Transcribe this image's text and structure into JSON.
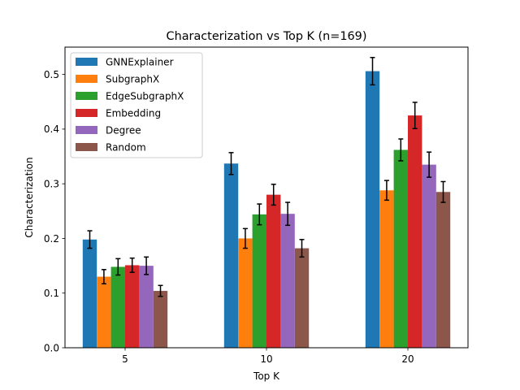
{
  "chart_data": {
    "type": "bar",
    "title": "Characterization vs Top K (n=169)",
    "xlabel": "Top K",
    "ylabel": "Characterization",
    "categories": [
      "5",
      "10",
      "20"
    ],
    "ylim": [
      0,
      0.55
    ],
    "yticks": [
      "0.0",
      "0.1",
      "0.2",
      "0.3",
      "0.4",
      "0.5"
    ],
    "grid": false,
    "legend_position": "top-left",
    "series": [
      {
        "name": "GNNExplainer",
        "color": "#1f77b4",
        "values": [
          0.198,
          0.337,
          0.506
        ],
        "errors": [
          0.016,
          0.02,
          0.025
        ]
      },
      {
        "name": "SubgraphX",
        "color": "#ff7f0e",
        "values": [
          0.13,
          0.2,
          0.288
        ],
        "errors": [
          0.013,
          0.018,
          0.018
        ]
      },
      {
        "name": "EdgeSubgraphX",
        "color": "#2ca02c",
        "values": [
          0.148,
          0.244,
          0.362
        ],
        "errors": [
          0.015,
          0.019,
          0.02
        ]
      },
      {
        "name": "Embedding",
        "color": "#d62728",
        "values": [
          0.151,
          0.28,
          0.425
        ],
        "errors": [
          0.013,
          0.019,
          0.024
        ]
      },
      {
        "name": "Degree",
        "color": "#9467bd",
        "values": [
          0.15,
          0.245,
          0.335
        ],
        "errors": [
          0.016,
          0.021,
          0.023
        ]
      },
      {
        "name": "Random",
        "color": "#8c564b",
        "values": [
          0.104,
          0.182,
          0.285
        ],
        "errors": [
          0.01,
          0.016,
          0.019
        ]
      }
    ]
  }
}
